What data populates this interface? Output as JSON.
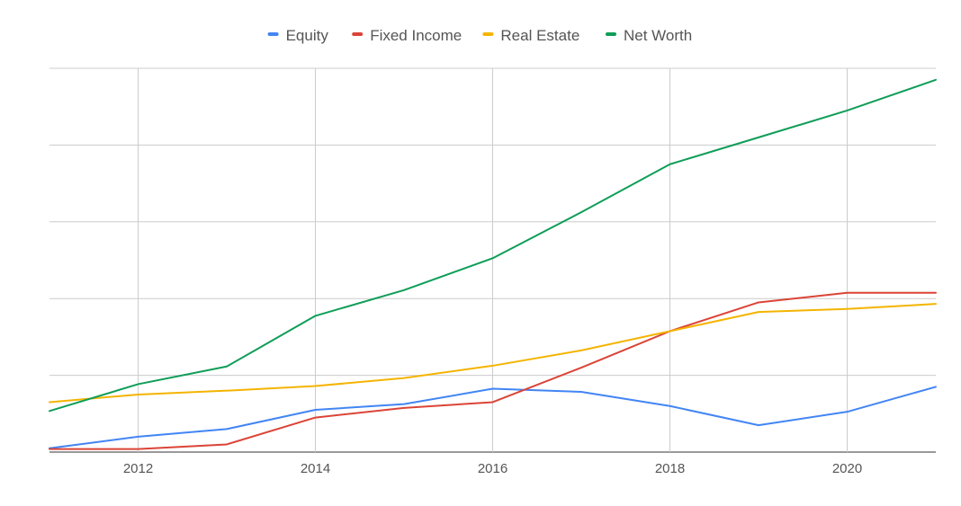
{
  "chart_data": {
    "type": "line",
    "x": [
      2011,
      2012,
      2013,
      2014,
      2015,
      2016,
      2017,
      2018,
      2019,
      2020,
      2021
    ],
    "x_ticks": [
      "2012",
      "2014",
      "2016",
      "2018",
      "2020"
    ],
    "xlim": [
      2011,
      2021
    ],
    "ylim": [
      0,
      100
    ],
    "y_gridlines": [
      0,
      20,
      40,
      60,
      80,
      100
    ],
    "grid": true,
    "legend_position": "top",
    "series": [
      {
        "name": "Equity",
        "color": "#4285f4",
        "values": [
          1,
          4,
          6,
          11,
          12.5,
          16.5,
          15.7,
          12,
          7,
          10.5,
          17
        ]
      },
      {
        "name": "Fixed Income",
        "color": "#db4437",
        "values": [
          0.8,
          0.8,
          2,
          9,
          11.5,
          13,
          22,
          31.5,
          39,
          41.5,
          41.5
        ]
      },
      {
        "name": "Real Estate",
        "color": "#f4b400",
        "values": [
          13,
          15,
          16,
          17.2,
          19.3,
          22.5,
          26.5,
          31.5,
          36.5,
          37.3,
          38.6
        ]
      },
      {
        "name": "Net Worth",
        "color": "#0f9d58",
        "values": [
          10.7,
          17.7,
          22.3,
          35.5,
          42.2,
          50.5,
          62.5,
          75,
          82,
          89,
          97
        ]
      }
    ]
  }
}
